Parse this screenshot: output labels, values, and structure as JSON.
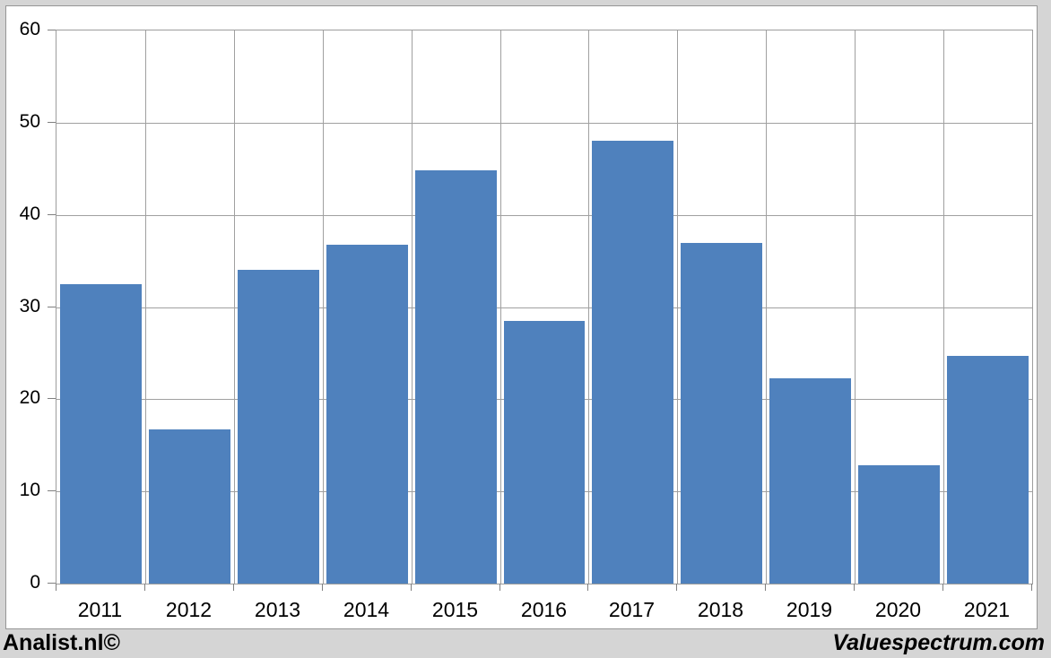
{
  "footer": {
    "left": "Analist.nl©",
    "right": "Valuespectrum.com"
  },
  "chart_data": {
    "type": "bar",
    "title": "",
    "categories": [
      "2011",
      "2012",
      "2013",
      "2014",
      "2015",
      "2016",
      "2017",
      "2018",
      "2019",
      "2020",
      "2021"
    ],
    "values": [
      32.5,
      16.7,
      34.0,
      36.8,
      44.8,
      28.5,
      48.0,
      37.0,
      22.3,
      12.8,
      24.7
    ],
    "xlabel": "",
    "ylabel": "",
    "ylim": [
      0,
      60
    ],
    "yticks": [
      0,
      10,
      20,
      30,
      40,
      50,
      60
    ],
    "grid": true,
    "legend": false,
    "bar_color": "#4f81bd",
    "gridline_color": "#a0a0a0",
    "axis_color": "#7f7f7f",
    "plot_bg": "#ffffff",
    "page_bg": "#d5d5d5"
  }
}
